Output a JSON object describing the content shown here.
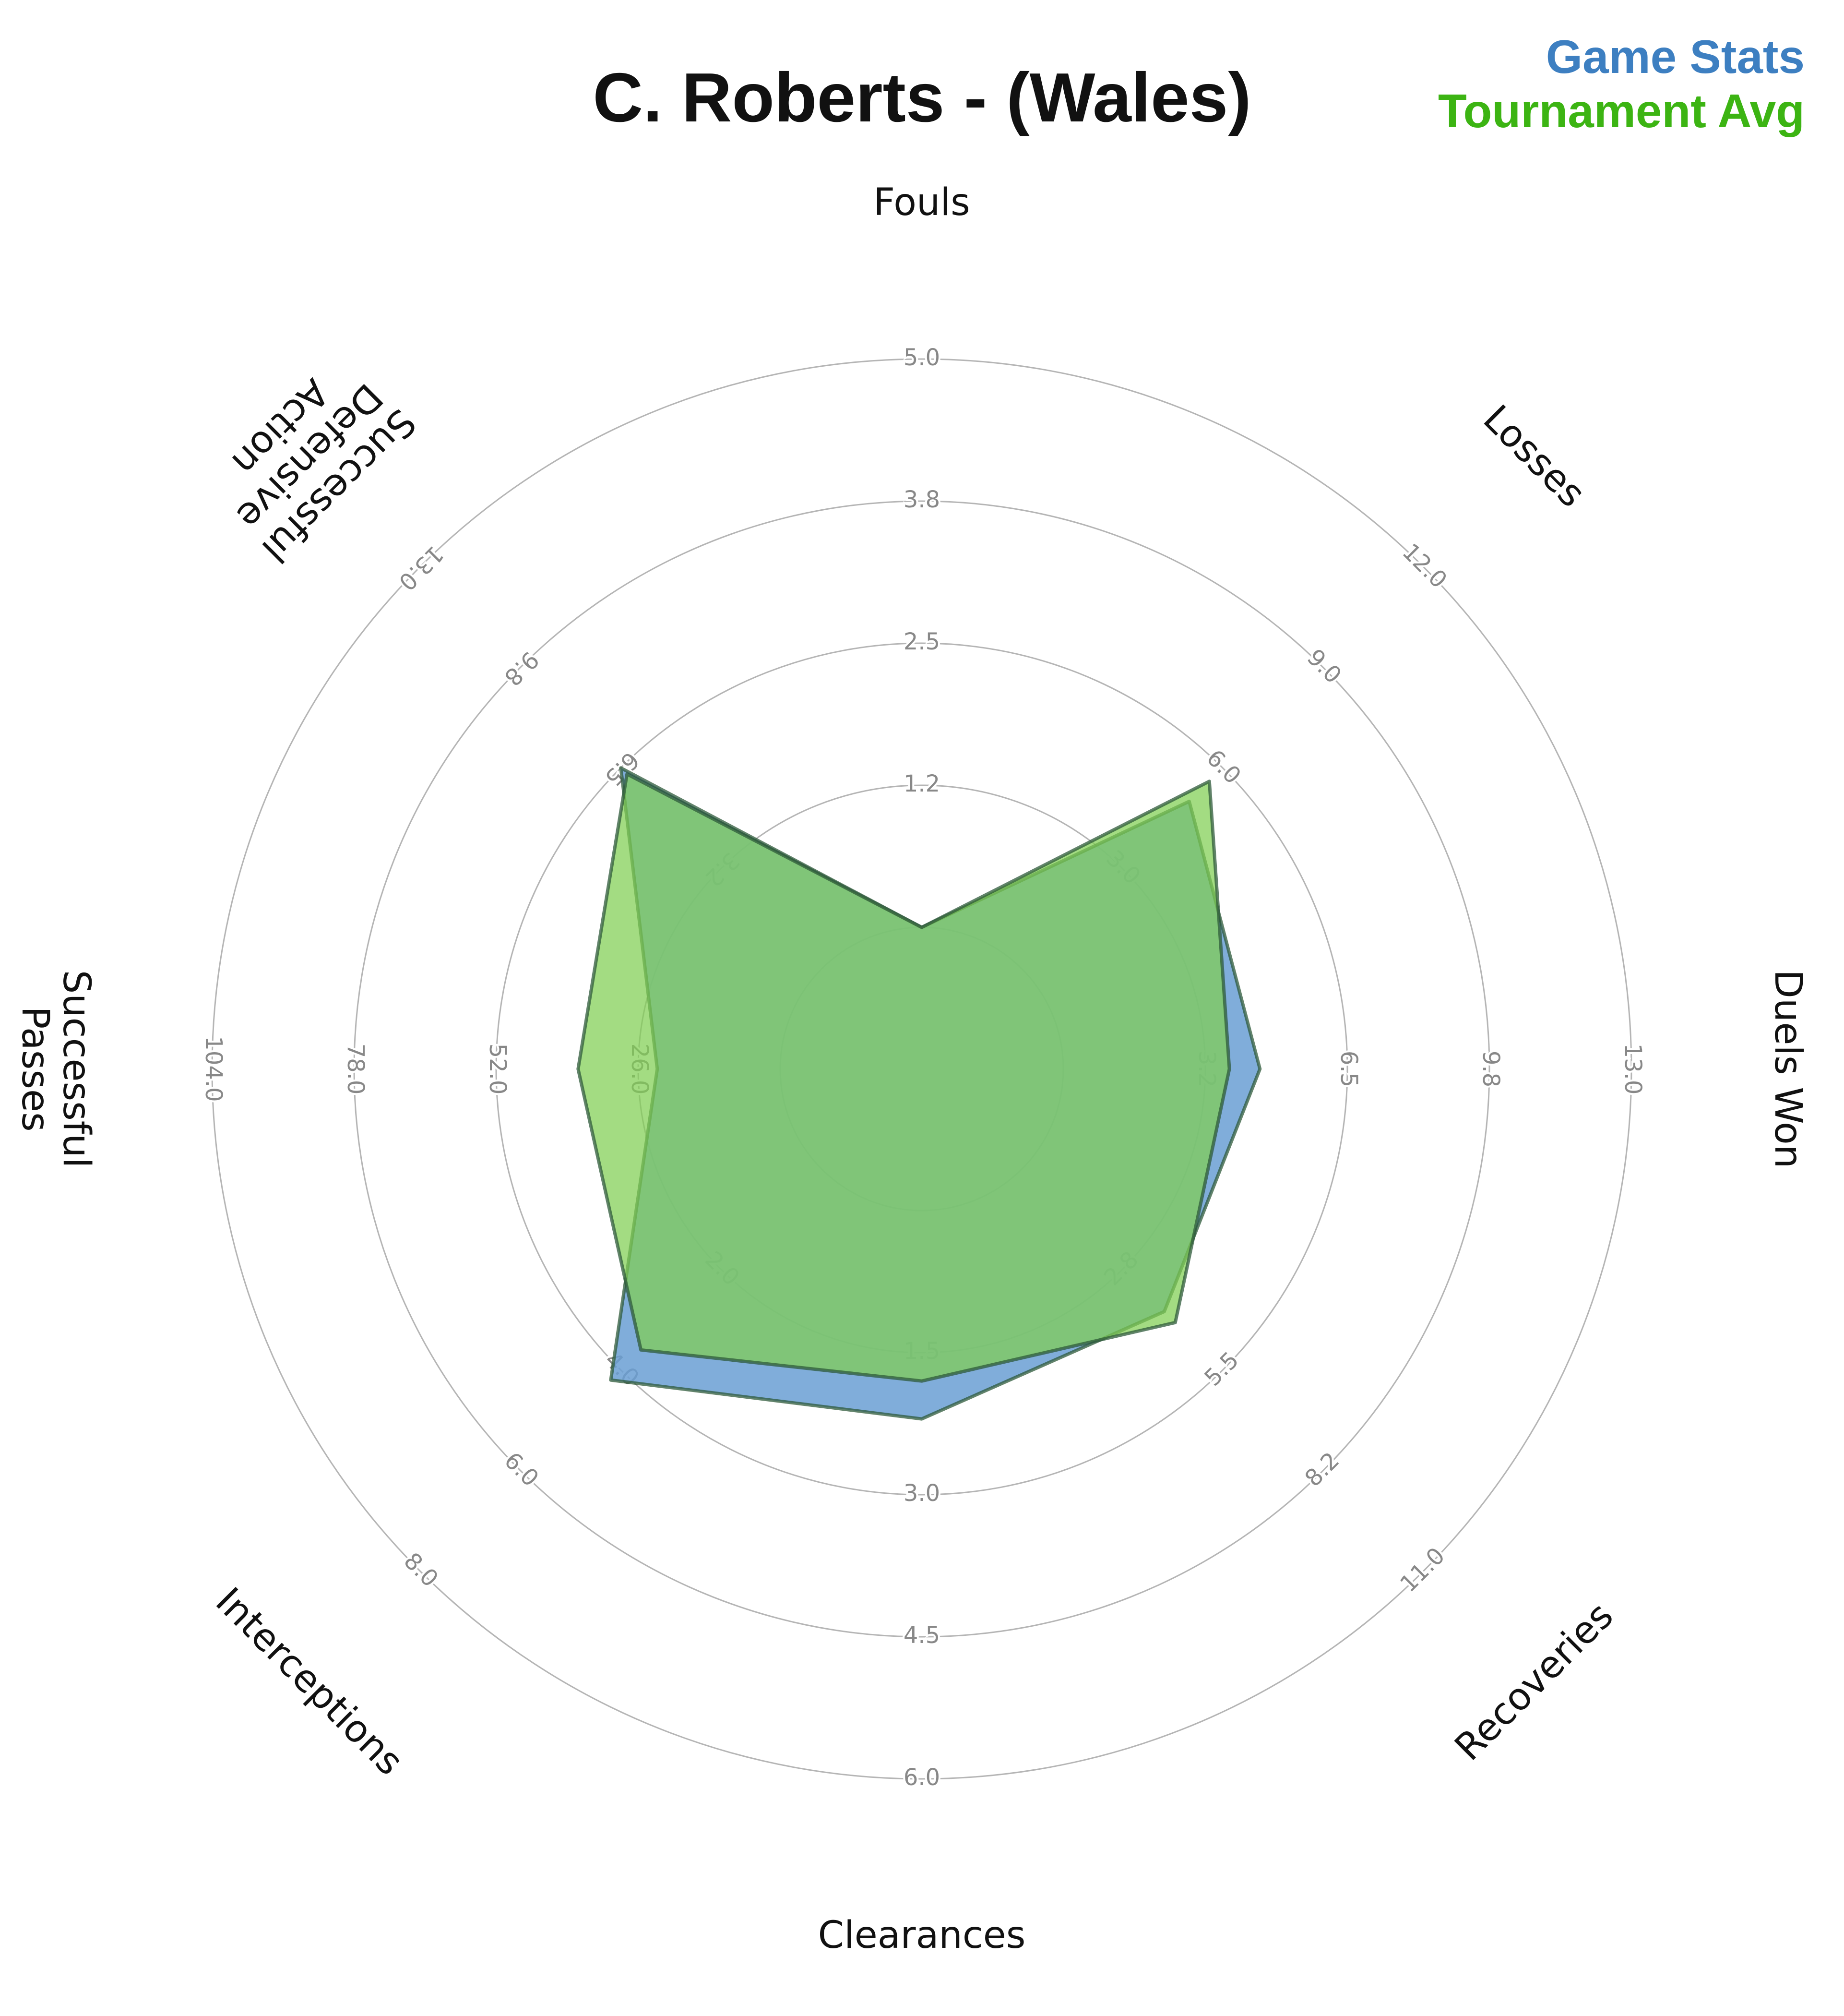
{
  "chart_data": {
    "type": "radar",
    "title": "C. Roberts - (Wales)",
    "axes": [
      {
        "label": "Fouls",
        "ticks": [
          "1.2",
          "2.5",
          "3.8",
          "5.0"
        ],
        "max": 5.0
      },
      {
        "label": "Losses",
        "ticks": [
          "3.0",
          "6.0",
          "9.0",
          "12.0"
        ],
        "max": 12.0
      },
      {
        "label": "Duels Won",
        "ticks": [
          "3.2",
          "6.5",
          "9.8",
          "13.0"
        ],
        "max": 13.0
      },
      {
        "label": "Recoveries",
        "ticks": [
          "2.8",
          "5.5",
          "8.2",
          "11.0"
        ],
        "max": 11.0
      },
      {
        "label": "Clearances",
        "ticks": [
          "1.5",
          "3.0",
          "4.5",
          "6.0"
        ],
        "max": 6.0
      },
      {
        "label": "Interceptions",
        "ticks": [
          "2.0",
          "4.0",
          "6.0",
          "8.0"
        ],
        "max": 8.0
      },
      {
        "label": "Successful Passes",
        "ticks": [
          "26.0",
          "52.0",
          "78.0",
          "104.0"
        ],
        "max": 104.0
      },
      {
        "label": "Successful Defensive Action",
        "ticks": [
          "3.2",
          "6.5",
          "9.8",
          "13.0"
        ],
        "max": 13.0
      }
    ],
    "series": [
      {
        "name": "Game Stats",
        "color": "#3d7fc1",
        "fill": "#6a9fd3",
        "values": [
          0,
          5.0,
          4.5,
          3.9,
          2.2,
          4.2,
          22.5,
          6.5
        ]
      },
      {
        "name": "Tournament Avg",
        "color": "#3cb413",
        "fill": "#7fcf52",
        "values": [
          0,
          5.6,
          3.8,
          4.2,
          1.8,
          3.6,
          37.0,
          6.3
        ]
      }
    ],
    "legend": "top-right"
  },
  "colors": {
    "game_stats": "#3d7fc1",
    "tournament_avg": "#3cb413",
    "grid": "#b5b5b5",
    "tick_label": "#888888"
  }
}
